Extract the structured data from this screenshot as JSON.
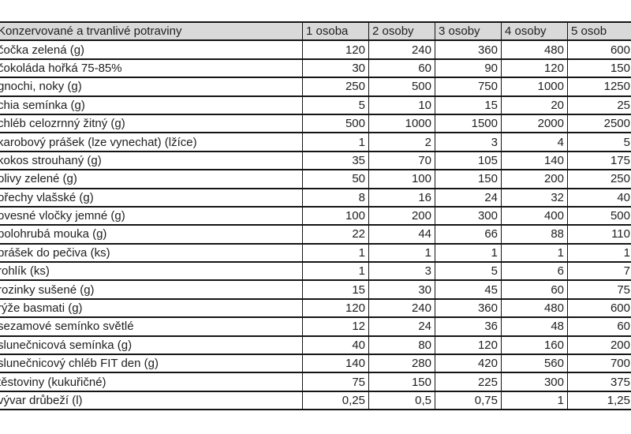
{
  "table": {
    "header": [
      "Konzervované a trvanlivé potraviny",
      "1 osoba",
      "2 osoby",
      "3 osoby",
      "4 osoby",
      "5 osob"
    ],
    "rows": [
      {
        "label": "čočka zelená (g)",
        "values": [
          "120",
          "240",
          "360",
          "480",
          "600"
        ]
      },
      {
        "label": "čokoláda hořká 75-85%",
        "values": [
          "30",
          "60",
          "90",
          "120",
          "150"
        ]
      },
      {
        "label": "gnochi, noky (g)",
        "values": [
          "250",
          "500",
          "750",
          "1000",
          "1250"
        ]
      },
      {
        "label": "chia semínka (g)",
        "values": [
          "5",
          "10",
          "15",
          "20",
          "25"
        ]
      },
      {
        "label": "chléb celozrnný žitný (g)",
        "values": [
          "500",
          "1000",
          "1500",
          "2000",
          "2500"
        ]
      },
      {
        "label": "karobový prášek (lze vynechat) (lžíce)",
        "values": [
          "1",
          "2",
          "3",
          "4",
          "5"
        ]
      },
      {
        "label": "kokos strouhaný (g)",
        "values": [
          "35",
          "70",
          "105",
          "140",
          "175"
        ]
      },
      {
        "label": "olivy zelené (g)",
        "values": [
          "50",
          "100",
          "150",
          "200",
          "250"
        ]
      },
      {
        "label": "ořechy vlašské (g)",
        "values": [
          "8",
          "16",
          "24",
          "32",
          "40"
        ]
      },
      {
        "label": "ovesné vločky jemné (g)",
        "values": [
          "100",
          "200",
          "300",
          "400",
          "500"
        ]
      },
      {
        "label": "polohrubá mouka (g)",
        "values": [
          "22",
          "44",
          "66",
          "88",
          "110"
        ]
      },
      {
        "label": "prášek do pečiva (ks)",
        "values": [
          "1",
          "1",
          "1",
          "1",
          "1"
        ]
      },
      {
        "label": "rohlík (ks)",
        "values": [
          "1",
          "3",
          "5",
          "6",
          "7"
        ]
      },
      {
        "label": "rozinky sušené (g)",
        "values": [
          "15",
          "30",
          "45",
          "60",
          "75"
        ]
      },
      {
        "label": "rýže basmati (g)",
        "values": [
          "120",
          "240",
          "360",
          "480",
          "600"
        ]
      },
      {
        "label": "sezamové semínko světlé",
        "values": [
          "12",
          "24",
          "36",
          "48",
          "60"
        ]
      },
      {
        "label": "slunečnicová semínka (g)",
        "values": [
          "40",
          "80",
          "120",
          "160",
          "200"
        ]
      },
      {
        "label": "slunečnicový chléb FIT den (g)",
        "values": [
          "140",
          "280",
          "420",
          "560",
          "700"
        ]
      },
      {
        "label": "těstoviny (kukuřičné)",
        "values": [
          "75",
          "150",
          "225",
          "300",
          "375"
        ]
      },
      {
        "label": "vývar drůbeží (l)",
        "values": [
          "0,25",
          "0,5",
          "0,75",
          "1",
          "1,25"
        ]
      }
    ]
  },
  "colors": {
    "header_bg": "#d9d9d9",
    "border": "#141414",
    "text": "#212121",
    "background": "#ffffff"
  }
}
